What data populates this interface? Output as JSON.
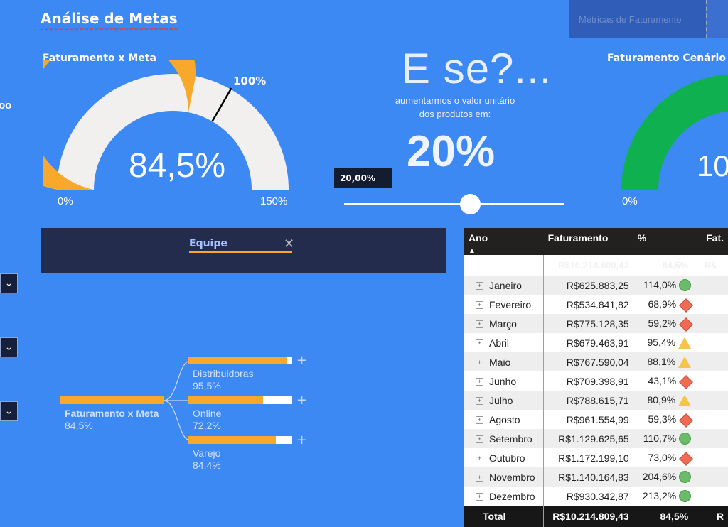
{
  "header": {
    "title": "Análise de Metas",
    "metrics_button": "Métricas de Faturamento"
  },
  "gauge_left": {
    "title": "Faturamento x Meta",
    "value_label": "84,5%",
    "value": 84.5,
    "target_label": "100%",
    "target": 100,
    "min_label": "0%",
    "max_label": "150%",
    "max": 150,
    "fill_color": "#f8a82a"
  },
  "edge_text": "oo",
  "whatif": {
    "heading": "E se?...",
    "line1": "aumentarmos o valor unitário",
    "line2": "dos produtos em:",
    "value_big": "20%",
    "slider_value": "20,00%",
    "slider_fraction": 0.57
  },
  "gauge_right": {
    "title": "Faturamento Cenário x M",
    "value_label": "10",
    "min_label": "0%",
    "fill_color": "#0fb050"
  },
  "filter": {
    "label": "Equipe",
    "clear_icon": "close-icon"
  },
  "decomp": {
    "root": {
      "label": "Faturamento x Meta",
      "value": "84,5%"
    },
    "children": [
      {
        "label": "Distribuidoras",
        "value": "95,5%",
        "fraction": 0.955
      },
      {
        "label": "Online",
        "value": "72,2%",
        "fraction": 0.722
      },
      {
        "label": "Varejo",
        "value": "84,4%",
        "fraction": 0.844
      }
    ]
  },
  "table": {
    "columns": [
      "Ano",
      "Faturamento",
      "%",
      "Fat."
    ],
    "subtotal": {
      "faturamento": "R$10.214.809,43",
      "pct": "84,5%",
      "fat": "R$"
    },
    "rows": [
      {
        "mes": "Janeiro",
        "fat": "R$625.883,25",
        "pct": "114,0%",
        "status": "circle"
      },
      {
        "mes": "Fevereiro",
        "fat": "R$534.841,82",
        "pct": "68,9%",
        "status": "diamond"
      },
      {
        "mes": "Março",
        "fat": "R$775.128,35",
        "pct": "59,2%",
        "status": "diamond"
      },
      {
        "mes": "Abril",
        "fat": "R$679.463,91",
        "pct": "95,4%",
        "status": "triangle"
      },
      {
        "mes": "Maio",
        "fat": "R$767.590,04",
        "pct": "88,1%",
        "status": "triangle"
      },
      {
        "mes": "Junho",
        "fat": "R$709.398,91",
        "pct": "43,1%",
        "status": "diamond"
      },
      {
        "mes": "Julho",
        "fat": "R$788.615,71",
        "pct": "80,9%",
        "status": "triangle"
      },
      {
        "mes": "Agosto",
        "fat": "R$961.554,99",
        "pct": "59,3%",
        "status": "diamond"
      },
      {
        "mes": "Setembro",
        "fat": "R$1.129.625,65",
        "pct": "110,7%",
        "status": "circle"
      },
      {
        "mes": "Outubro",
        "fat": "R$1.172.199,10",
        "pct": "73,0%",
        "status": "diamond"
      },
      {
        "mes": "Novembro",
        "fat": "R$1.140.164,83",
        "pct": "204,6%",
        "status": "circle"
      },
      {
        "mes": "Dezembro",
        "fat": "R$930.342,87",
        "pct": "213,2%",
        "status": "circle"
      }
    ],
    "total": {
      "label": "Total",
      "faturamento": "R$10.214.809,43",
      "pct": "84,5%"
    }
  }
}
